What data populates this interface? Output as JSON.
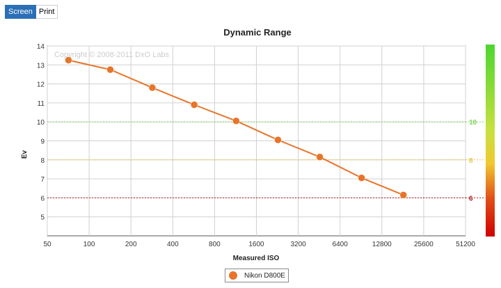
{
  "tabs": [
    {
      "label": "Screen",
      "active": true
    },
    {
      "label": "Print",
      "active": false
    }
  ],
  "chart_data": {
    "type": "line",
    "title": "Dynamic Range",
    "xlabel": "Measured ISO",
    "ylabel": "Ev",
    "watermark": "Copyright © 2008-2011 DxO Labs",
    "x_scale": "log2",
    "x_ticks": [
      "50",
      "100",
      "200",
      "400",
      "800",
      "1600",
      "3200",
      "6400",
      "12800",
      "25600",
      "51200"
    ],
    "y_ticks": [
      "5",
      "6",
      "7",
      "8",
      "9",
      "10",
      "11",
      "12",
      "13",
      "14"
    ],
    "xlim": [
      50,
      51200
    ],
    "ylim": [
      4,
      14
    ],
    "grid": true,
    "series": [
      {
        "name": "Nikon D800E",
        "color": "#e8742a",
        "x": [
          71,
          142,
          285,
          571,
          1143,
          2286,
          4572,
          9144,
          18288
        ],
        "y": [
          13.25,
          12.75,
          11.8,
          10.9,
          10.05,
          9.05,
          8.15,
          7.05,
          6.15
        ]
      }
    ],
    "reference_lines": [
      {
        "y": 10,
        "label": "10",
        "color": "#7fd65a"
      },
      {
        "y": 8,
        "label": "8",
        "color": "#e8c44a"
      },
      {
        "y": 6,
        "label": "6",
        "color": "#b02020"
      }
    ],
    "legend_position": "bottom-center"
  }
}
